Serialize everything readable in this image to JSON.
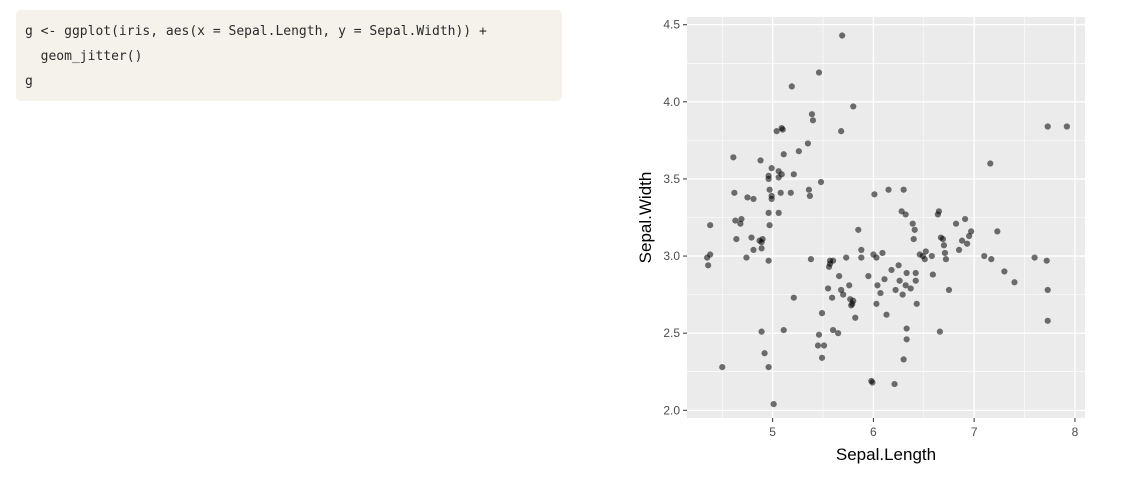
{
  "code": {
    "lines": [
      "g <- ggplot(iris, aes(x = Sepal.Length, y = Sepal.Width)) +",
      "  geom_jitter()",
      "g"
    ]
  },
  "chart_data": {
    "type": "scatter",
    "title": "",
    "xlabel": "Sepal.Length",
    "ylabel": "Sepal.Width",
    "xlim": [
      4.15,
      8.1
    ],
    "ylim": [
      1.95,
      4.55
    ],
    "xticks": [
      5,
      6,
      7,
      8
    ],
    "xtick_labels": [
      "5",
      "6",
      "7",
      "8"
    ],
    "yticks": [
      2.0,
      2.5,
      3.0,
      3.5,
      4.0,
      4.5
    ],
    "ytick_labels": [
      "2.0",
      "2.5",
      "3.0",
      "3.5",
      "4.0",
      "4.5"
    ],
    "grid": true,
    "point_color": "#000000",
    "point_opacity": 0.55,
    "panel_color": "#ebebeb",
    "points": [
      [
        4.35,
        2.99
      ],
      [
        4.38,
        3.01
      ],
      [
        4.36,
        2.94
      ],
      [
        4.38,
        3.2
      ],
      [
        4.5,
        2.28
      ],
      [
        4.61,
        3.64
      ],
      [
        4.62,
        3.41
      ],
      [
        4.63,
        3.23
      ],
      [
        4.64,
        3.11
      ],
      [
        4.69,
        3.24
      ],
      [
        4.68,
        3.21
      ],
      [
        4.75,
        3.38
      ],
      [
        4.74,
        2.99
      ],
      [
        4.79,
        3.12
      ],
      [
        4.81,
        3.37
      ],
      [
        4.81,
        3.04
      ],
      [
        4.88,
        3.62
      ],
      [
        4.87,
        3.1
      ],
      [
        4.89,
        3.09
      ],
      [
        4.89,
        3.05
      ],
      [
        4.9,
        3.11
      ],
      [
        4.89,
        2.51
      ],
      [
        4.92,
        2.37
      ],
      [
        4.96,
        3.52
      ],
      [
        4.96,
        3.5
      ],
      [
        4.97,
        3.43
      ],
      [
        4.96,
        3.28
      ],
      [
        4.97,
        3.2
      ],
      [
        4.96,
        2.97
      ],
      [
        4.96,
        2.28
      ],
      [
        4.99,
        3.57
      ],
      [
        4.99,
        3.37
      ],
      [
        4.99,
        3.39
      ],
      [
        5.01,
        2.04
      ],
      [
        5.04,
        3.81
      ],
      [
        5.06,
        3.51
      ],
      [
        5.06,
        3.55
      ],
      [
        5.06,
        3.28
      ],
      [
        5.09,
        3.83
      ],
      [
        5.1,
        3.82
      ],
      [
        5.08,
        3.41
      ],
      [
        5.09,
        3.53
      ],
      [
        5.11,
        3.66
      ],
      [
        5.11,
        2.52
      ],
      [
        5.19,
        4.1
      ],
      [
        5.18,
        3.41
      ],
      [
        5.21,
        3.53
      ],
      [
        5.21,
        2.73
      ],
      [
        5.26,
        3.68
      ],
      [
        5.35,
        3.73
      ],
      [
        5.36,
        3.43
      ],
      [
        5.37,
        3.39
      ],
      [
        5.38,
        2.98
      ],
      [
        5.39,
        3.92
      ],
      [
        5.4,
        3.88
      ],
      [
        5.46,
        4.19
      ],
      [
        5.46,
        2.49
      ],
      [
        5.45,
        2.42
      ],
      [
        5.48,
        3.48
      ],
      [
        5.49,
        2.63
      ],
      [
        5.49,
        2.34
      ],
      [
        5.51,
        2.42
      ],
      [
        5.55,
        2.79
      ],
      [
        5.56,
        2.93
      ],
      [
        5.57,
        2.97
      ],
      [
        5.57,
        2.95
      ],
      [
        5.6,
        2.97
      ],
      [
        5.59,
        2.73
      ],
      [
        5.6,
        2.52
      ],
      [
        5.65,
        2.5
      ],
      [
        5.68,
        3.81
      ],
      [
        5.69,
        4.43
      ],
      [
        5.66,
        2.87
      ],
      [
        5.68,
        2.78
      ],
      [
        5.7,
        2.75
      ],
      [
        5.73,
        2.99
      ],
      [
        5.76,
        2.81
      ],
      [
        5.77,
        2.72
      ],
      [
        5.79,
        2.69
      ],
      [
        5.78,
        2.68
      ],
      [
        5.8,
        3.97
      ],
      [
        5.8,
        2.71
      ],
      [
        5.82,
        2.6
      ],
      [
        5.85,
        3.17
      ],
      [
        5.88,
        3.04
      ],
      [
        5.88,
        2.99
      ],
      [
        5.95,
        2.87
      ],
      [
        5.98,
        2.19
      ],
      [
        5.99,
        2.18
      ],
      [
        6.01,
        3.4
      ],
      [
        6.0,
        3.01
      ],
      [
        6.03,
        2.99
      ],
      [
        6.04,
        2.81
      ],
      [
        6.03,
        2.69
      ],
      [
        6.07,
        2.76
      ],
      [
        6.09,
        3.02
      ],
      [
        6.11,
        2.85
      ],
      [
        6.13,
        2.62
      ],
      [
        6.15,
        3.43
      ],
      [
        6.18,
        2.91
      ],
      [
        6.21,
        2.17
      ],
      [
        6.22,
        2.78
      ],
      [
        6.25,
        2.94
      ],
      [
        6.26,
        2.84
      ],
      [
        6.28,
        3.29
      ],
      [
        6.3,
        3.43
      ],
      [
        6.29,
        2.75
      ],
      [
        6.3,
        2.33
      ],
      [
        6.32,
        3.27
      ],
      [
        6.33,
        2.89
      ],
      [
        6.32,
        2.81
      ],
      [
        6.33,
        2.53
      ],
      [
        6.33,
        2.46
      ],
      [
        6.37,
        2.79
      ],
      [
        6.39,
        3.21
      ],
      [
        6.41,
        3.17
      ],
      [
        6.4,
        3.11
      ],
      [
        6.42,
        2.89
      ],
      [
        6.42,
        2.84
      ],
      [
        6.43,
        2.69
      ],
      [
        6.46,
        3.01
      ],
      [
        6.49,
        3.0
      ],
      [
        6.52,
        3.03
      ],
      [
        6.51,
        2.98
      ],
      [
        6.58,
        3.0
      ],
      [
        6.59,
        2.88
      ],
      [
        6.64,
        3.27
      ],
      [
        6.65,
        3.29
      ],
      [
        6.66,
        2.51
      ],
      [
        6.67,
        3.12
      ],
      [
        6.69,
        3.11
      ],
      [
        6.7,
        3.07
      ],
      [
        6.71,
        3.02
      ],
      [
        6.72,
        2.98
      ],
      [
        6.75,
        2.78
      ],
      [
        6.82,
        3.21
      ],
      [
        6.85,
        3.04
      ],
      [
        6.88,
        3.1
      ],
      [
        6.91,
        3.24
      ],
      [
        6.93,
        3.08
      ],
      [
        6.95,
        3.13
      ],
      [
        6.97,
        3.16
      ],
      [
        7.1,
        3.0
      ],
      [
        7.16,
        3.6
      ],
      [
        7.17,
        2.98
      ],
      [
        7.23,
        3.16
      ],
      [
        7.3,
        2.9
      ],
      [
        7.4,
        2.83
      ],
      [
        7.6,
        2.99
      ],
      [
        7.72,
        2.97
      ],
      [
        7.73,
        3.84
      ],
      [
        7.73,
        2.78
      ],
      [
        7.73,
        2.58
      ],
      [
        7.92,
        3.84
      ]
    ]
  }
}
